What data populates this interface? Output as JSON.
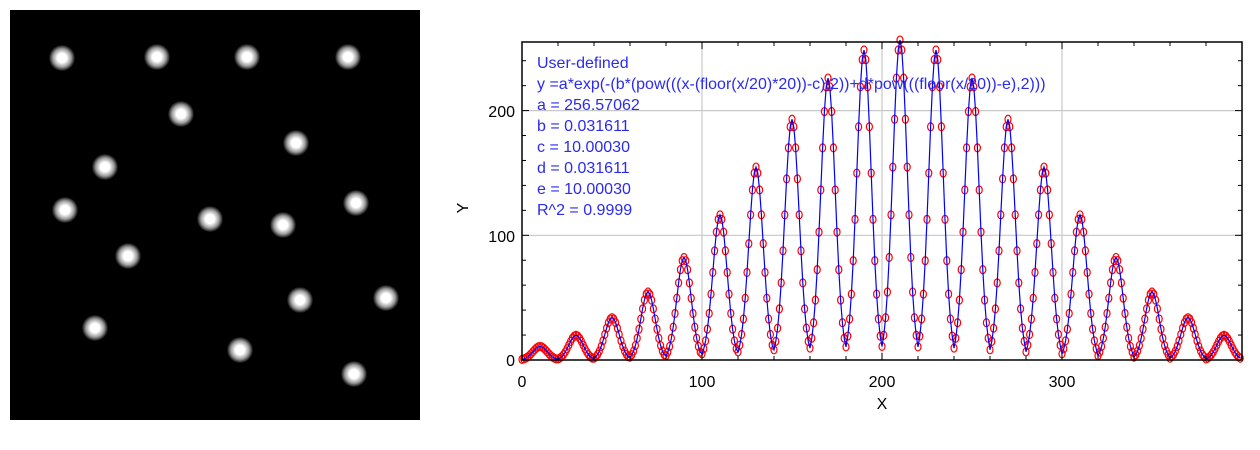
{
  "image_panel": {
    "spots": [
      [
        62,
        58
      ],
      [
        157,
        57
      ],
      [
        247,
        57
      ],
      [
        348,
        57
      ],
      [
        181,
        114
      ],
      [
        296,
        143
      ],
      [
        105,
        167
      ],
      [
        65,
        210
      ],
      [
        356,
        203
      ],
      [
        210,
        219
      ],
      [
        283,
        225
      ],
      [
        128,
        256
      ],
      [
        300,
        300
      ],
      [
        386,
        298
      ],
      [
        95,
        328
      ],
      [
        240,
        350
      ],
      [
        354,
        374
      ]
    ]
  },
  "chart_data": {
    "type": "scatter",
    "xlabel": "X",
    "ylabel": "Y",
    "xlim": [
      0,
      400
    ],
    "ylim": [
      0,
      255
    ],
    "xticks": [
      "0",
      "100",
      "200",
      "300"
    ],
    "yticks": [
      "0",
      "100",
      "200"
    ],
    "grid": true,
    "legend_placement": "top-left",
    "fit_label": "User-defined",
    "equation": "y =a*exp(-(b*(pow(((x-(floor(x/20)*20))-c),2))+d*pow(((floor(x/20))-e),2)))",
    "params": {
      "a": 256.57062,
      "b": 0.031611,
      "c": 10.0003,
      "d": 0.031611,
      "e": 10.0003
    },
    "param_lines": [
      "a = 256.57062",
      "b = 0.031611",
      "c = 10.00030",
      "d = 0.031611",
      "e = 10.00030",
      "R^2 = 0.9999"
    ],
    "sample_step": 1,
    "series": [
      {
        "name": "data",
        "style": "open-circle",
        "color": "#ff0000"
      },
      {
        "name": "fit",
        "style": "line",
        "color": "#0000ff"
      }
    ]
  }
}
